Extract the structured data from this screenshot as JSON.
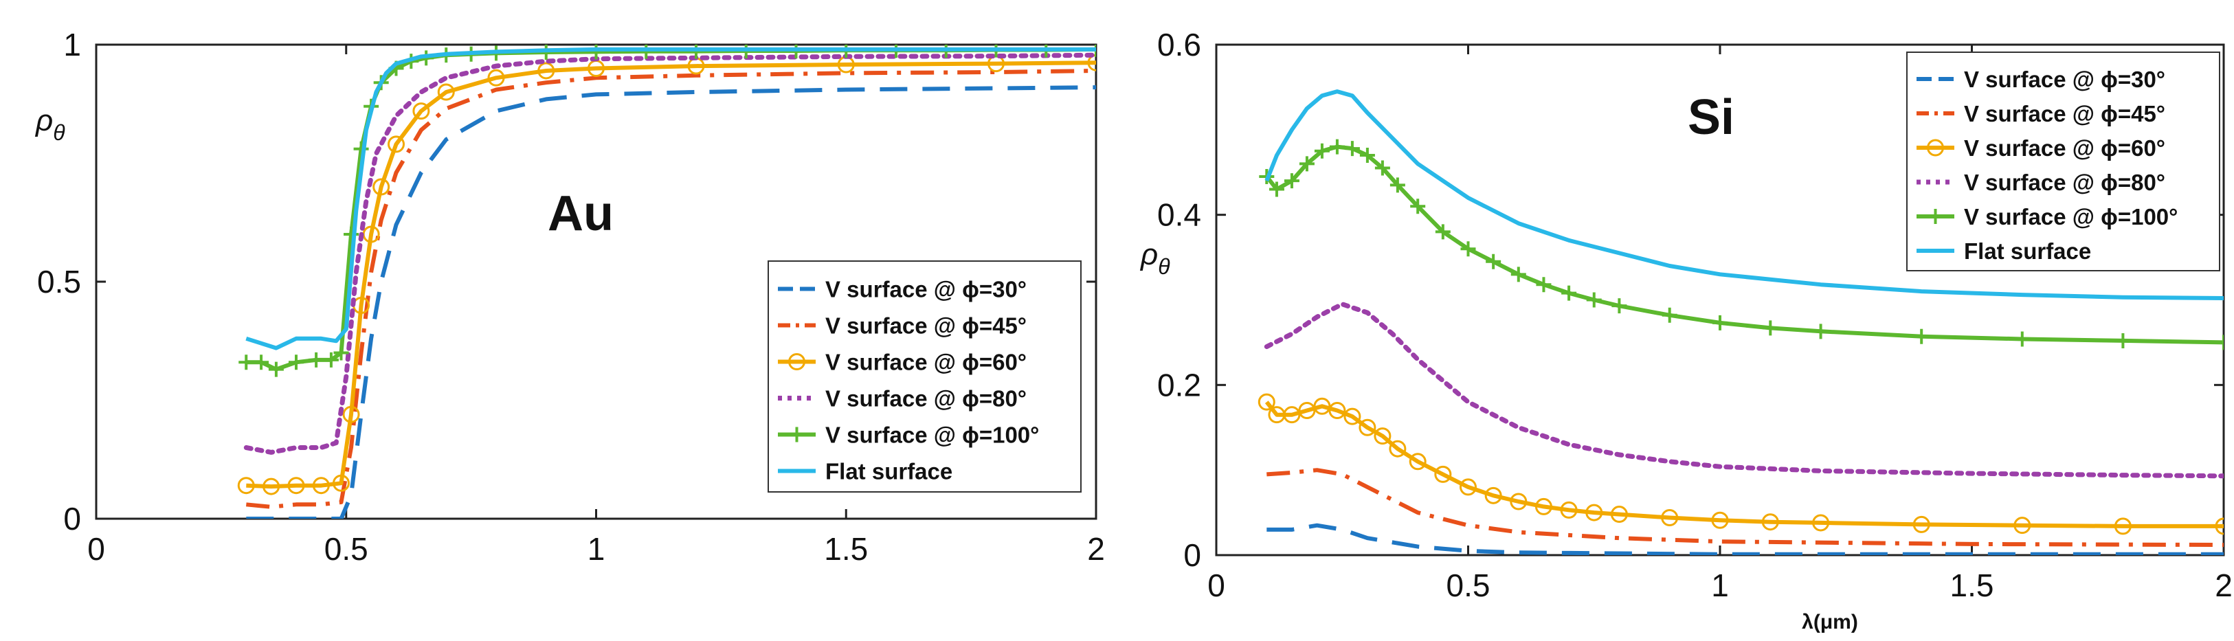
{
  "colors": {
    "v30": "#1f77c4",
    "v45": "#e8501a",
    "v60": "#f2a900",
    "v80": "#9b3fa8",
    "v100": "#5cb82e",
    "flat": "#29b8e8",
    "axis": "#222222"
  },
  "chart_data": [
    {
      "type": "line",
      "annotation": "Au",
      "ylabel_main": "ρ",
      "ylabel_sub": "θ",
      "xlabel": "",
      "xlim": [
        0,
        2
      ],
      "ylim": [
        0,
        1
      ],
      "x_ticks": [
        0,
        0.5,
        1,
        1.5,
        2
      ],
      "x_tick_labels": [
        "0",
        "0.5",
        "1",
        "1.5",
        "2"
      ],
      "y_ticks": [
        0,
        0.5,
        1
      ],
      "y_tick_labels": [
        "0",
        "0.5",
        "1"
      ],
      "legend_position": "right-middle",
      "series": [
        {
          "key": "v30",
          "name": "V surface @ ϕ=30°",
          "style": "dashed",
          "marker": "none",
          "x": [
            0.3,
            0.35,
            0.4,
            0.45,
            0.49,
            0.51,
            0.53,
            0.55,
            0.57,
            0.6,
            0.65,
            0.7,
            0.8,
            0.9,
            1.0,
            1.2,
            1.5,
            1.8,
            2.0
          ],
          "y": [
            0.0,
            0.0,
            0.0,
            0.0,
            0.0,
            0.05,
            0.22,
            0.38,
            0.5,
            0.62,
            0.73,
            0.8,
            0.86,
            0.885,
            0.895,
            0.9,
            0.905,
            0.908,
            0.91
          ]
        },
        {
          "key": "v45",
          "name": "V surface @ ϕ=45°",
          "style": "dashdot",
          "marker": "none",
          "x": [
            0.3,
            0.35,
            0.4,
            0.45,
            0.49,
            0.51,
            0.53,
            0.55,
            0.57,
            0.6,
            0.65,
            0.7,
            0.8,
            0.9,
            1.0,
            1.2,
            1.5,
            1.8,
            2.0
          ],
          "y": [
            0.03,
            0.025,
            0.03,
            0.03,
            0.035,
            0.15,
            0.35,
            0.52,
            0.63,
            0.73,
            0.82,
            0.865,
            0.905,
            0.92,
            0.93,
            0.935,
            0.94,
            0.942,
            0.945
          ]
        },
        {
          "key": "v60",
          "name": "V surface @ ϕ=60°",
          "style": "solid",
          "marker": "circle",
          "marker_every": 1,
          "x": [
            0.3,
            0.35,
            0.4,
            0.45,
            0.49,
            0.51,
            0.53,
            0.55,
            0.57,
            0.6,
            0.65,
            0.7,
            0.8,
            0.9,
            1.0,
            1.2,
            1.5,
            1.8,
            2.0
          ],
          "y": [
            0.07,
            0.068,
            0.07,
            0.07,
            0.075,
            0.22,
            0.45,
            0.6,
            0.7,
            0.79,
            0.86,
            0.9,
            0.93,
            0.945,
            0.95,
            0.955,
            0.958,
            0.96,
            0.962
          ]
        },
        {
          "key": "v80",
          "name": "V surface @ ϕ=80°",
          "style": "dotted",
          "marker": "none",
          "x": [
            0.3,
            0.35,
            0.4,
            0.45,
            0.48,
            0.5,
            0.52,
            0.54,
            0.56,
            0.6,
            0.65,
            0.7,
            0.8,
            0.9,
            1.0,
            1.2,
            1.5,
            1.8,
            2.0
          ],
          "y": [
            0.15,
            0.14,
            0.15,
            0.15,
            0.16,
            0.3,
            0.52,
            0.67,
            0.77,
            0.85,
            0.9,
            0.93,
            0.955,
            0.965,
            0.97,
            0.972,
            0.975,
            0.976,
            0.978
          ]
        },
        {
          "key": "v100",
          "name": "V surface @ ϕ=100°",
          "style": "solid",
          "marker": "plus",
          "marker_every": 1,
          "x": [
            0.3,
            0.33,
            0.36,
            0.4,
            0.44,
            0.47,
            0.49,
            0.51,
            0.53,
            0.55,
            0.57,
            0.6,
            0.63,
            0.66,
            0.7,
            0.75,
            0.8,
            0.9,
            1.0,
            1.1,
            1.2,
            1.3,
            1.4,
            1.5,
            1.6,
            1.7,
            1.8,
            1.9,
            2.0
          ],
          "y": [
            0.33,
            0.33,
            0.315,
            0.33,
            0.335,
            0.335,
            0.35,
            0.6,
            0.78,
            0.87,
            0.92,
            0.95,
            0.965,
            0.972,
            0.978,
            0.98,
            0.982,
            0.984,
            0.985,
            0.986,
            0.986,
            0.987,
            0.987,
            0.988,
            0.988,
            0.988,
            0.989,
            0.989,
            0.99
          ]
        },
        {
          "key": "flat",
          "name": "Flat surface",
          "style": "solid",
          "marker": "none",
          "x": [
            0.3,
            0.33,
            0.36,
            0.4,
            0.45,
            0.48,
            0.5,
            0.52,
            0.54,
            0.56,
            0.58,
            0.6,
            0.65,
            0.7,
            0.8,
            0.9,
            1.0,
            1.5,
            2.0
          ],
          "y": [
            0.38,
            0.37,
            0.36,
            0.38,
            0.38,
            0.375,
            0.4,
            0.65,
            0.82,
            0.9,
            0.94,
            0.96,
            0.975,
            0.98,
            0.985,
            0.988,
            0.99,
            0.99,
            0.99
          ]
        }
      ]
    },
    {
      "type": "line",
      "annotation": "Si",
      "ylabel_main": "ρ",
      "ylabel_sub": "θ",
      "xlabel": "λ(μm)",
      "xlim": [
        0,
        2
      ],
      "ylim": [
        0,
        0.6
      ],
      "x_ticks": [
        0,
        0.5,
        1,
        1.5,
        2
      ],
      "x_tick_labels": [
        "0",
        "0.5",
        "1",
        "1.5",
        "2"
      ],
      "y_ticks": [
        0,
        0.2,
        0.4,
        0.6
      ],
      "y_tick_labels": [
        "0",
        "0.2",
        "0.4",
        "0.6"
      ],
      "legend_position": "top-right",
      "series": [
        {
          "key": "v30",
          "name": "V surface @ ϕ=30°",
          "style": "dashed",
          "marker": "none",
          "x": [
            0.1,
            0.15,
            0.2,
            0.25,
            0.3,
            0.4,
            0.5,
            0.6,
            0.8,
            1.0,
            1.5,
            2.0
          ],
          "y": [
            0.03,
            0.03,
            0.035,
            0.03,
            0.02,
            0.01,
            0.005,
            0.003,
            0.002,
            0.001,
            0.001,
            0.001
          ]
        },
        {
          "key": "v45",
          "name": "V surface @ ϕ=45°",
          "style": "dashdot",
          "marker": "none",
          "x": [
            0.1,
            0.15,
            0.2,
            0.25,
            0.3,
            0.35,
            0.4,
            0.5,
            0.6,
            0.8,
            1.0,
            1.5,
            2.0
          ],
          "y": [
            0.095,
            0.097,
            0.1,
            0.095,
            0.08,
            0.065,
            0.05,
            0.035,
            0.027,
            0.02,
            0.016,
            0.013,
            0.012
          ]
        },
        {
          "key": "v60",
          "name": "V surface @ ϕ=60°",
          "style": "solid",
          "marker": "circle",
          "marker_every": 1,
          "x": [
            0.1,
            0.12,
            0.15,
            0.18,
            0.21,
            0.24,
            0.27,
            0.3,
            0.33,
            0.36,
            0.4,
            0.45,
            0.5,
            0.55,
            0.6,
            0.65,
            0.7,
            0.75,
            0.8,
            0.9,
            1.0,
            1.1,
            1.2,
            1.4,
            1.6,
            1.8,
            2.0
          ],
          "y": [
            0.18,
            0.165,
            0.165,
            0.17,
            0.175,
            0.17,
            0.163,
            0.15,
            0.14,
            0.125,
            0.11,
            0.095,
            0.08,
            0.07,
            0.063,
            0.057,
            0.053,
            0.05,
            0.048,
            0.044,
            0.041,
            0.039,
            0.038,
            0.036,
            0.035,
            0.034,
            0.034
          ]
        },
        {
          "key": "v80",
          "name": "V surface @ ϕ=80°",
          "style": "dotted",
          "marker": "none",
          "x": [
            0.1,
            0.15,
            0.2,
            0.25,
            0.3,
            0.35,
            0.4,
            0.5,
            0.6,
            0.7,
            0.8,
            0.9,
            1.0,
            1.2,
            1.5,
            1.8,
            2.0
          ],
          "y": [
            0.245,
            0.26,
            0.28,
            0.295,
            0.285,
            0.26,
            0.23,
            0.18,
            0.15,
            0.13,
            0.118,
            0.11,
            0.104,
            0.099,
            0.096,
            0.094,
            0.093
          ]
        },
        {
          "key": "v100",
          "name": "V surface @ ϕ=100°",
          "style": "solid",
          "marker": "plus",
          "marker_every": 1,
          "x": [
            0.1,
            0.12,
            0.15,
            0.18,
            0.21,
            0.24,
            0.27,
            0.3,
            0.33,
            0.36,
            0.4,
            0.45,
            0.5,
            0.55,
            0.6,
            0.65,
            0.7,
            0.75,
            0.8,
            0.9,
            1.0,
            1.1,
            1.2,
            1.4,
            1.6,
            1.8,
            2.0
          ],
          "y": [
            0.445,
            0.43,
            0.44,
            0.46,
            0.475,
            0.48,
            0.478,
            0.47,
            0.455,
            0.435,
            0.41,
            0.38,
            0.36,
            0.345,
            0.33,
            0.318,
            0.308,
            0.3,
            0.293,
            0.282,
            0.273,
            0.267,
            0.263,
            0.257,
            0.254,
            0.252,
            0.25
          ]
        },
        {
          "key": "flat",
          "name": "Flat surface",
          "style": "solid",
          "marker": "none",
          "x": [
            0.1,
            0.12,
            0.15,
            0.18,
            0.21,
            0.24,
            0.27,
            0.3,
            0.35,
            0.4,
            0.5,
            0.6,
            0.7,
            0.8,
            0.9,
            1.0,
            1.2,
            1.4,
            1.6,
            1.8,
            2.0
          ],
          "y": [
            0.44,
            0.47,
            0.5,
            0.525,
            0.54,
            0.545,
            0.54,
            0.52,
            0.49,
            0.46,
            0.42,
            0.39,
            0.37,
            0.355,
            0.34,
            0.33,
            0.318,
            0.31,
            0.306,
            0.303,
            0.302
          ]
        }
      ]
    }
  ]
}
